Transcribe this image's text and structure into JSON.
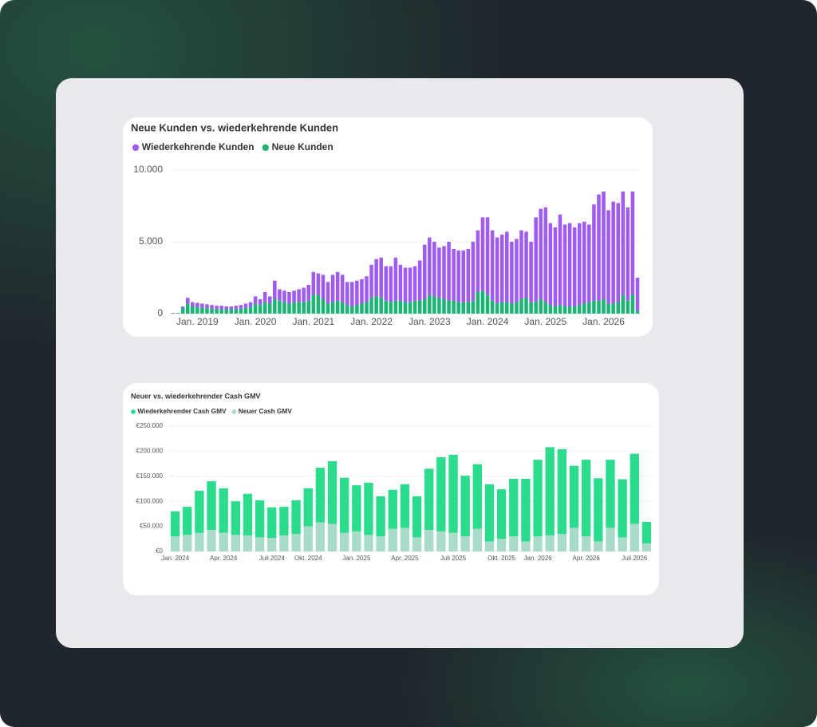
{
  "chart_data": [
    {
      "type": "stacked_bar",
      "title": "Neue Kunden vs. wiederkehrende Kunden",
      "categories": [
        null,
        null,
        null,
        null,
        null,
        "Jan. 2019",
        null,
        null,
        null,
        null,
        null,
        null,
        null,
        null,
        null,
        null,
        null,
        "Jan. 2020",
        null,
        null,
        null,
        null,
        null,
        null,
        null,
        null,
        null,
        null,
        null,
        "Jan. 2021",
        null,
        null,
        null,
        null,
        null,
        null,
        null,
        null,
        null,
        null,
        null,
        "Jan. 2022",
        null,
        null,
        null,
        null,
        null,
        null,
        null,
        null,
        null,
        null,
        null,
        "Jan. 2023",
        null,
        null,
        null,
        null,
        null,
        null,
        null,
        null,
        null,
        null,
        null,
        "Jan. 2024",
        null,
        null,
        null,
        null,
        null,
        null,
        null,
        null,
        null,
        null,
        null,
        "Jan. 2025",
        null,
        null,
        null,
        null,
        null,
        null,
        null,
        null,
        null,
        null,
        null,
        "Jan. 2026",
        null,
        null,
        null,
        null,
        null,
        null,
        null
      ],
      "series": [
        {
          "name": "Wiederkehrende Kunden",
          "color": "#a05cf0",
          "values": [
            20,
            20,
            100,
            400,
            300,
            300,
            300,
            250,
            250,
            250,
            250,
            200,
            200,
            250,
            250,
            300,
            350,
            500,
            400,
            700,
            500,
            1300,
            800,
            800,
            800,
            800,
            900,
            1000,
            1100,
            1600,
            1500,
            1700,
            1500,
            1900,
            2000,
            1900,
            1600,
            1700,
            1700,
            1700,
            1800,
            2300,
            2600,
            2800,
            2400,
            2500,
            3000,
            2500,
            2400,
            2400,
            2400,
            2800,
            3800,
            4000,
            3800,
            3500,
            3700,
            4100,
            3600,
            3600,
            3600,
            3700,
            4100,
            4300,
            5100,
            5400,
            4900,
            4600,
            4700,
            4900,
            4300,
            4400,
            4800,
            4600,
            4200,
            5900,
            6300,
            6600,
            5700,
            5500,
            6300,
            5700,
            5800,
            5500,
            5700,
            5700,
            5400,
            6700,
            7400,
            7500,
            6500,
            7100,
            6900,
            7200,
            6500,
            7200,
            2300
          ]
        },
        {
          "name": "Neue Kunden",
          "color": "#1db574",
          "values": [
            30,
            30,
            400,
            700,
            500,
            450,
            400,
            400,
            350,
            300,
            300,
            300,
            300,
            300,
            350,
            400,
            450,
            700,
            600,
            800,
            700,
            1000,
            900,
            800,
            700,
            800,
            800,
            800,
            900,
            1300,
            1300,
            1000,
            700,
            800,
            900,
            800,
            600,
            500,
            600,
            700,
            800,
            1100,
            1200,
            1100,
            900,
            800,
            900,
            900,
            800,
            800,
            900,
            900,
            1000,
            1300,
            1200,
            1100,
            1000,
            900,
            900,
            800,
            800,
            800,
            900,
            1500,
            1600,
            1300,
            900,
            700,
            800,
            800,
            700,
            800,
            1000,
            1100,
            800,
            800,
            1000,
            800,
            600,
            500,
            600,
            500,
            500,
            500,
            600,
            700,
            800,
            900,
            900,
            1000,
            700,
            700,
            800,
            1300,
            900,
            1300,
            200
          ]
        }
      ],
      "ylim": [
        0,
        10000
      ],
      "yticks": [
        0,
        {
          "value": 5000,
          "label": "5.000"
        },
        {
          "value": 10000,
          "label": "10.000"
        }
      ],
      "grid": true
    },
    {
      "type": "stacked_bar",
      "title": "Neuer vs. wiederkehrender Cash GMV",
      "categories": [
        "Jan. 2024",
        null,
        null,
        null,
        "Apr. 2024",
        null,
        null,
        null,
        "Juli 2024",
        null,
        null,
        "Okt. 2024",
        null,
        null,
        null,
        "Jan. 2025",
        null,
        null,
        null,
        "Apr. 2025",
        null,
        null,
        null,
        "Juli 2025",
        null,
        null,
        null,
        "Okt. 2025",
        null,
        null,
        "Jan. 2026",
        null,
        null,
        null,
        "Apr. 2026",
        null,
        null,
        null,
        "Juli 2026",
        null
      ],
      "series": [
        {
          "name": "Wiederkehrender Cash GMV",
          "color": "#2bdc8c",
          "values": [
            50000,
            56000,
            84000,
            97000,
            89000,
            67000,
            83000,
            74000,
            61000,
            57000,
            67000,
            76000,
            109000,
            125000,
            110000,
            92000,
            104000,
            80000,
            78000,
            87000,
            82000,
            122000,
            148000,
            156000,
            121000,
            129000,
            114000,
            99000,
            115000,
            125000,
            153000,
            176000,
            169000,
            124000,
            153000,
            126000,
            136000,
            116000,
            140000,
            43000
          ]
        },
        {
          "name": "Neuer Cash GMV",
          "color": "#a8dcc8",
          "values": [
            30000,
            33000,
            37000,
            43000,
            37000,
            33000,
            32000,
            28000,
            27000,
            32000,
            35000,
            50000,
            58000,
            55000,
            37000,
            40000,
            33000,
            30000,
            45000,
            47000,
            28000,
            43000,
            40000,
            37000,
            30000,
            45000,
            20000,
            25000,
            30000,
            20000,
            30000,
            32000,
            35000,
            47000,
            30000,
            20000,
            47000,
            28000,
            55000,
            16000
          ]
        }
      ],
      "ylim": [
        0,
        250000
      ],
      "yticks": [
        {
          "value": 0,
          "label": "€0"
        },
        {
          "value": 50000,
          "label": "€50.000"
        },
        {
          "value": 100000,
          "label": "€100.000"
        },
        {
          "value": 150000,
          "label": "€150.000"
        },
        {
          "value": 200000,
          "label": "€200.000"
        },
        {
          "value": 250000,
          "label": "€250.000"
        }
      ],
      "grid": true
    }
  ]
}
